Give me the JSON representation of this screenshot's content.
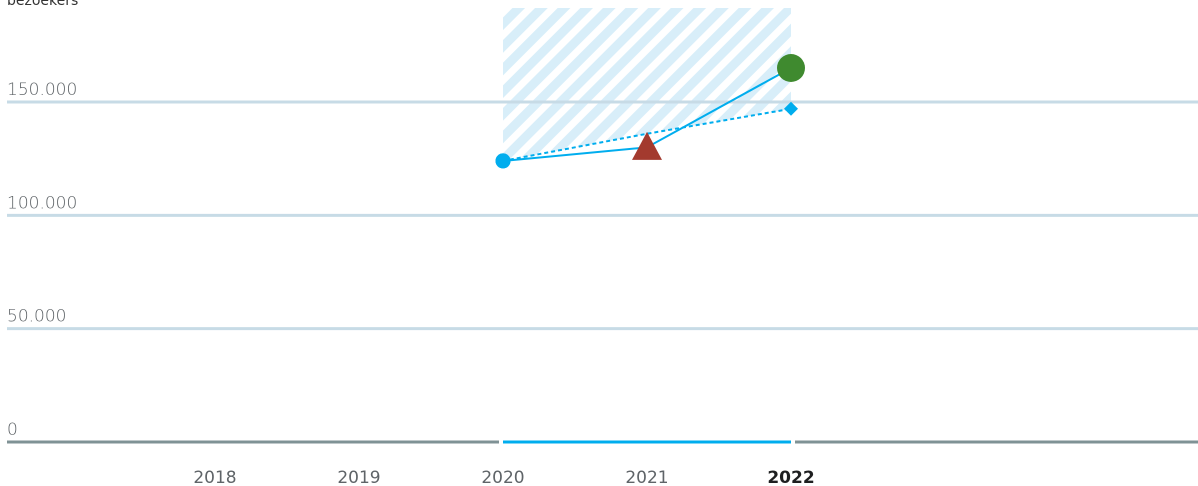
{
  "chart_data": {
    "type": "line",
    "title": "",
    "xlabel": "",
    "ylabel": "bezoekers",
    "x": [
      "2018",
      "2019",
      "2020",
      "2021",
      "2022"
    ],
    "highlight_x": "2022",
    "ylim": [
      0,
      195000
    ],
    "yticks": [
      0,
      50000,
      100000,
      150000
    ],
    "ytick_labels": [
      "0",
      "50.000",
      "100.000",
      "150.000"
    ],
    "shaded_range": [
      "2020",
      "2022"
    ],
    "series": [
      {
        "style": "solid",
        "values": [
          null,
          null,
          124000,
          130000,
          165000
        ],
        "markers": [
          "",
          "",
          "circle",
          "triangle",
          "circle-large"
        ],
        "marker_colors": [
          "",
          "",
          "#00adee",
          "#a33a2e",
          "#3f8a2f"
        ]
      },
      {
        "style": "dashed",
        "values": [
          null,
          null,
          124000,
          136000,
          147000
        ],
        "markers": [
          "",
          "",
          "circle",
          "none",
          "diamond"
        ],
        "marker_colors": [
          "",
          "",
          "#00adee",
          "",
          "#00adee"
        ]
      }
    ],
    "grid": true,
    "colors": {
      "line": "#00adee",
      "grid": "#c7dbe6",
      "axis": "#7f9295",
      "shade": "#d8eef9"
    }
  }
}
